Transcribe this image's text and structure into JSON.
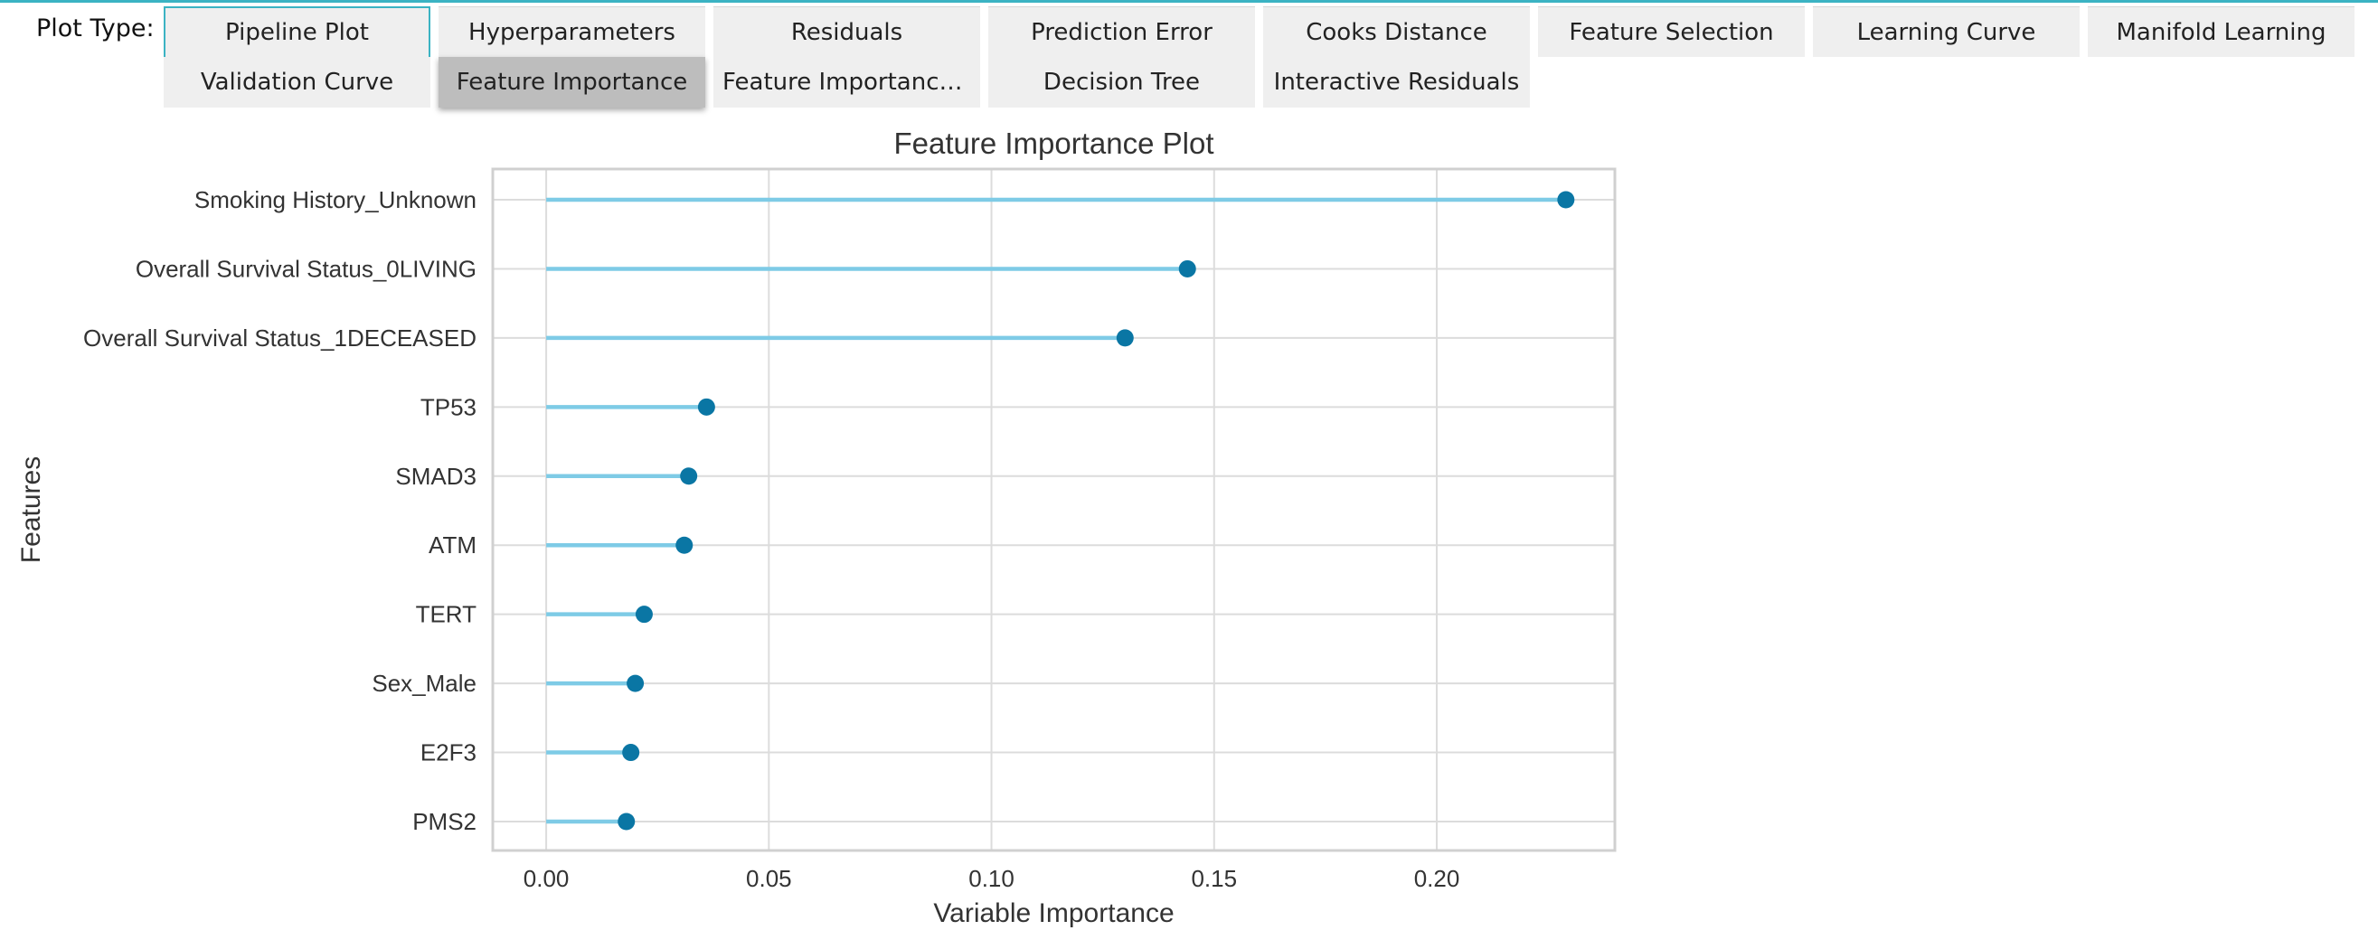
{
  "toolbar": {
    "label": "Plot Type:",
    "tabs": [
      {
        "label": "Pipeline Plot",
        "selected": false
      },
      {
        "label": "Hyperparameters",
        "selected": false
      },
      {
        "label": "Residuals",
        "selected": false
      },
      {
        "label": "Prediction Error",
        "selected": false
      },
      {
        "label": "Cooks Distance",
        "selected": false
      },
      {
        "label": "Feature Selection",
        "selected": false
      },
      {
        "label": "Learning Curve",
        "selected": false
      },
      {
        "label": "Manifold Learning",
        "selected": false
      },
      {
        "label": "Validation Curve",
        "selected": false
      },
      {
        "label": "Feature Importance",
        "selected": true
      },
      {
        "label": "Feature Importance…",
        "selected": false
      },
      {
        "label": "Decision Tree",
        "selected": false
      },
      {
        "label": "Interactive Residuals",
        "selected": false
      }
    ]
  },
  "colors": {
    "accent": "#3bb3c3",
    "stem": "#7ecbe6",
    "dot": "#0a76a4",
    "selected_tab": "#bdbdbd",
    "tab": "#efefef"
  },
  "chart_data": {
    "type": "lollipop",
    "title": "Feature Importance Plot",
    "xlabel": "Variable Importance",
    "ylabel": "Features",
    "xlim": [
      -0.012,
      0.24
    ],
    "xticks": [
      0.0,
      0.05,
      0.1,
      0.15,
      0.2
    ],
    "xtick_labels": [
      "0.00",
      "0.05",
      "0.10",
      "0.15",
      "0.20"
    ],
    "grid": true,
    "categories": [
      "Smoking History_Unknown",
      "Overall Survival Status_0LIVING",
      "Overall Survival Status_1DECEASED",
      "TP53",
      "SMAD3",
      "ATM",
      "TERT",
      "Sex_Male",
      "E2F3",
      "PMS2"
    ],
    "values": [
      0.229,
      0.144,
      0.13,
      0.036,
      0.032,
      0.031,
      0.022,
      0.02,
      0.019,
      0.018
    ]
  }
}
